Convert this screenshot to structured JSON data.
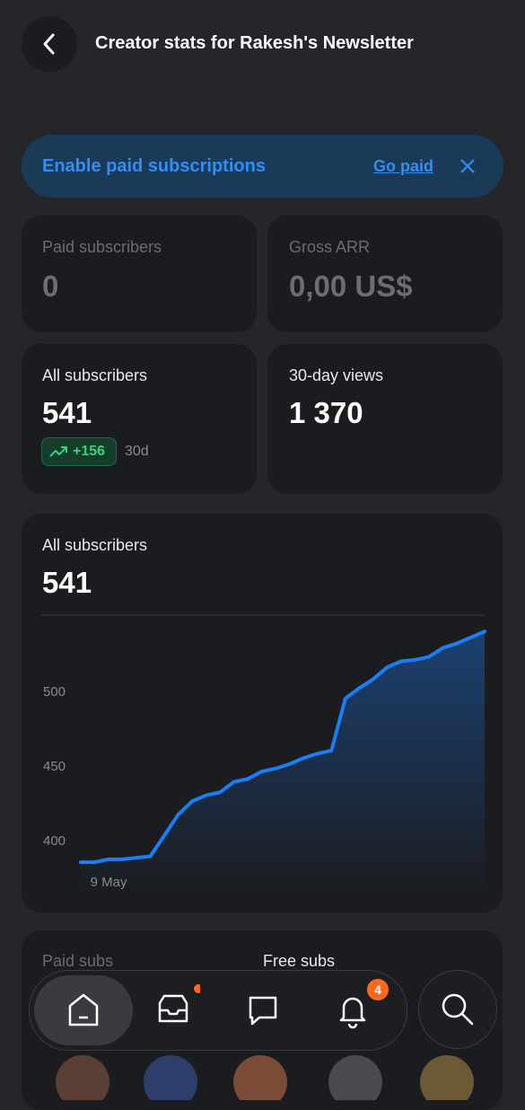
{
  "header": {
    "title": "Creator stats for Rakesh's Newsletter"
  },
  "banner": {
    "text": "Enable paid subscriptions",
    "link": "Go paid"
  },
  "cards": [
    {
      "label": "Paid subscribers",
      "value": "0"
    },
    {
      "label": "Gross ARR",
      "value": "0,00 US$"
    },
    {
      "label": "All subscribers",
      "value": "541",
      "change": "+156",
      "period": "30d"
    },
    {
      "label": "30-day views",
      "value": "1 370"
    }
  ],
  "chart_data": {
    "type": "line",
    "title": "All subscribers",
    "subtitle": "541",
    "categories": [
      null,
      null,
      "9 May",
      null,
      null,
      null,
      null,
      null,
      null,
      null,
      null,
      null,
      null,
      null,
      null,
      null,
      null,
      null,
      null,
      null,
      null,
      null,
      null,
      null,
      null,
      null,
      null,
      null,
      null,
      null
    ],
    "series": [
      {
        "color": "#1a7ef5",
        "values": [
          386,
          386,
          388,
          388,
          389,
          390,
          404,
          418,
          427,
          431,
          433,
          440,
          442,
          447,
          449,
          452,
          456,
          459,
          461,
          496,
          503,
          509,
          517,
          521,
          522,
          524,
          530,
          533,
          537,
          541
        ]
      }
    ],
    "ylim": [
      371,
      552
    ],
    "yticks": [
      400,
      450,
      500
    ],
    "grid": false
  },
  "bottom": {
    "left": "Paid subs",
    "right": "Free subs"
  },
  "nav": {
    "badge": "4"
  }
}
